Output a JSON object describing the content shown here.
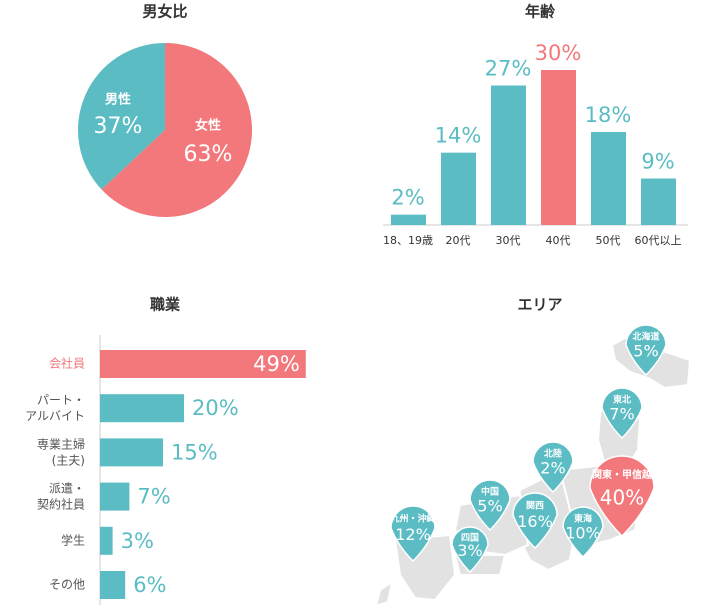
{
  "chart_data": [
    {
      "type": "pie",
      "title": "男女比",
      "categories": [
        "男性",
        "女性"
      ],
      "values": [
        37,
        63
      ],
      "value_labels": [
        "37%",
        "63%"
      ],
      "colors": [
        "#5bbcc4",
        "#f2787c"
      ]
    },
    {
      "type": "bar",
      "title": "年齢",
      "categories": [
        "18、19歳",
        "20代",
        "30代",
        "40代",
        "50代",
        "60代以上"
      ],
      "values": [
        2,
        14,
        27,
        30,
        18,
        9
      ],
      "value_labels": [
        "2%",
        "14%",
        "27%",
        "30%",
        "18%",
        "9%"
      ],
      "colors": [
        "#5bbcc4",
        "#5bbcc4",
        "#5bbcc4",
        "#f2787c",
        "#5bbcc4",
        "#5bbcc4"
      ],
      "ylim": [
        0,
        30
      ]
    },
    {
      "type": "hbar",
      "title": "職業",
      "categories": [
        "会社員",
        "パート・\nアルバイト",
        "専業主婦\n(主夫)",
        "派遣・\n契約社員",
        "学生",
        "その他"
      ],
      "values": [
        49,
        20,
        15,
        7,
        3,
        6
      ],
      "value_labels": [
        "49%",
        "20%",
        "15%",
        "7%",
        "3%",
        "6%"
      ],
      "colors": [
        "#f2787c",
        "#5bbcc4",
        "#5bbcc4",
        "#5bbcc4",
        "#5bbcc4",
        "#5bbcc4"
      ],
      "xlim": [
        0,
        50
      ]
    },
    {
      "type": "map",
      "title": "エリア",
      "categories": [
        "北海道",
        "東北",
        "北陸",
        "関東・甲信越",
        "東海",
        "関西",
        "中国",
        "九州・沖縄",
        "四国"
      ],
      "values": [
        5,
        7,
        2,
        40,
        10,
        16,
        5,
        12,
        3
      ],
      "value_labels": [
        "5%",
        "7%",
        "2%",
        "40%",
        "10%",
        "16%",
        "5%",
        "12%",
        "3%"
      ],
      "colors": [
        "#5bbcc4",
        "#5bbcc4",
        "#5bbcc4",
        "#f2787c",
        "#5bbcc4",
        "#5bbcc4",
        "#5bbcc4",
        "#5bbcc4",
        "#5bbcc4"
      ]
    }
  ]
}
